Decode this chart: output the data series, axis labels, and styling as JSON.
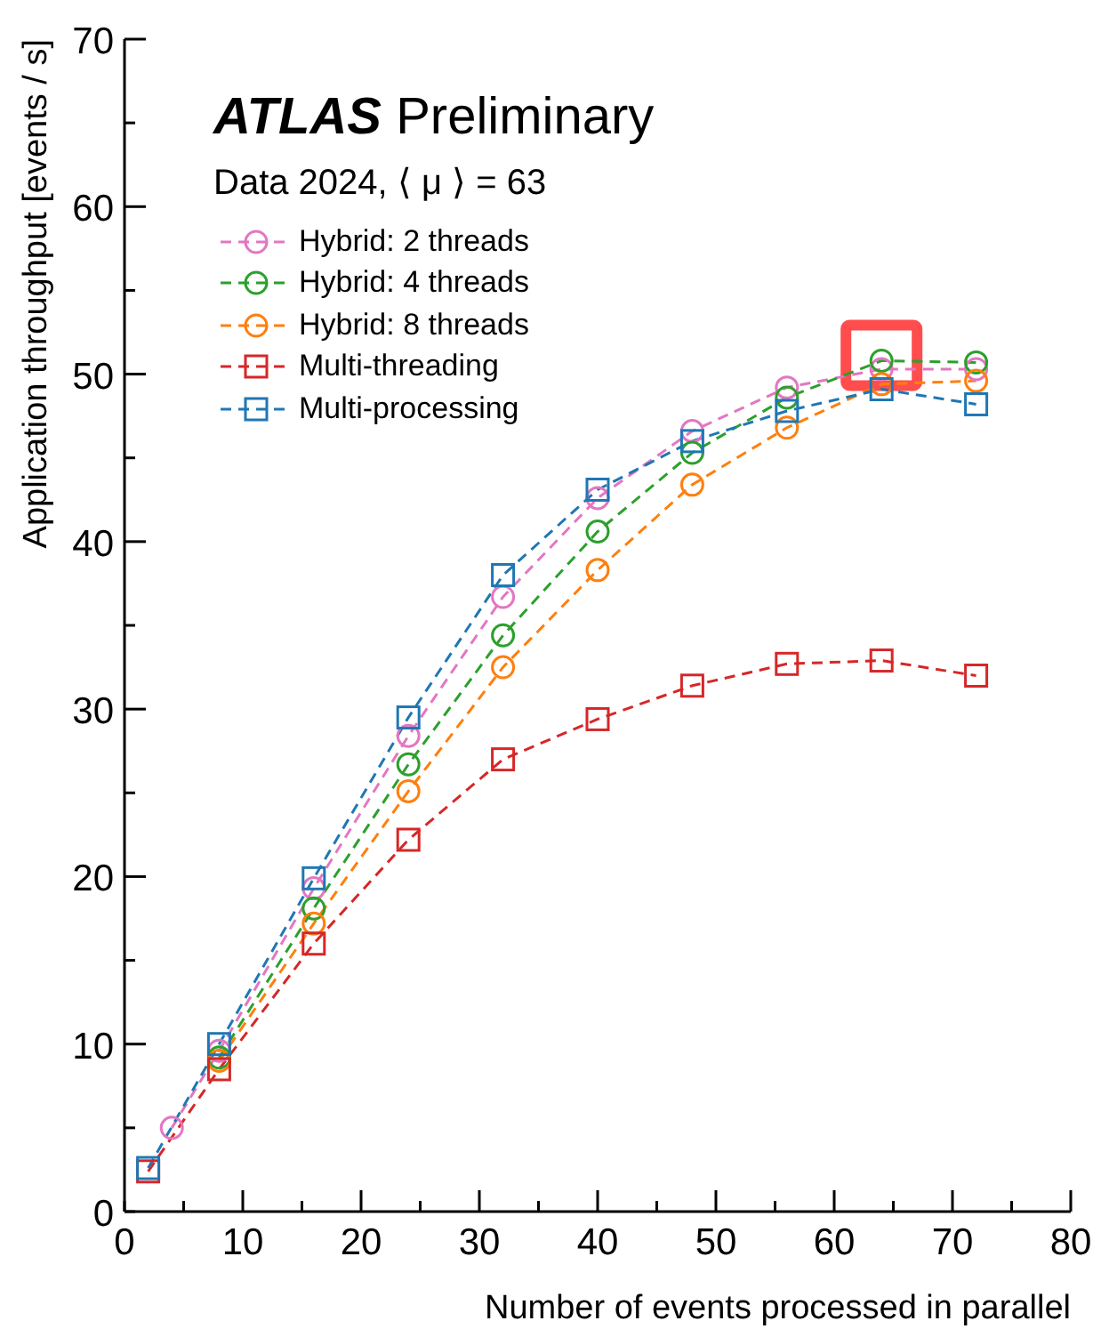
{
  "chart_data": {
    "type": "line",
    "annotations": [
      "ATLAS",
      "Preliminary",
      "Data 2024, ⟨ μ ⟩ = 63"
    ],
    "xlabel": "Number of events processed in parallel",
    "ylabel": "Application throughput [events / s]",
    "xlim": [
      0,
      80
    ],
    "xticks": [
      0,
      {
        "value": 5,
        "label": null
      },
      10,
      {
        "value": 15,
        "label": null
      },
      20,
      {
        "value": 25,
        "label": null
      },
      30,
      {
        "value": 35,
        "label": null
      },
      40,
      {
        "value": 45,
        "label": null
      },
      50,
      {
        "value": 55,
        "label": null
      },
      60,
      {
        "value": 65,
        "label": null
      },
      70,
      {
        "value": 75,
        "label": null
      },
      80
    ],
    "ylim": [
      0,
      70
    ],
    "yticks": [
      0,
      {
        "value": 5,
        "label": null
      },
      10,
      {
        "value": 15,
        "label": null
      },
      20,
      {
        "value": 25,
        "label": null
      },
      30,
      {
        "value": 35,
        "label": null
      },
      40,
      {
        "value": 45,
        "label": null
      },
      50,
      {
        "value": 55,
        "label": null
      },
      60,
      {
        "value": 65,
        "label": null
      },
      70
    ],
    "grid": false,
    "legend": "top left",
    "line_style": "dashed",
    "series": [
      {
        "name": "Hybrid: 2 threads",
        "color": "#e377c2",
        "marker": "circle",
        "x": [
          4,
          8,
          16,
          24,
          32,
          40,
          48,
          56,
          64,
          72
        ],
        "values": [
          5.0,
          9.6,
          19.3,
          28.4,
          36.7,
          42.6,
          46.6,
          49.2,
          50.3,
          50.3
        ]
      },
      {
        "name": "Hybrid: 4 threads",
        "color": "#2ca02c",
        "marker": "circle",
        "x": [
          8,
          16,
          24,
          32,
          40,
          48,
          56,
          64,
          72
        ],
        "values": [
          9.2,
          18.1,
          26.7,
          34.4,
          40.6,
          45.3,
          48.6,
          50.8,
          50.7
        ]
      },
      {
        "name": "Hybrid: 8 threads",
        "color": "#ff7f0e",
        "marker": "circle",
        "x": [
          8,
          16,
          24,
          32,
          40,
          48,
          56,
          64,
          72
        ],
        "values": [
          9.0,
          17.2,
          25.1,
          32.5,
          38.3,
          43.4,
          46.8,
          49.4,
          49.6
        ]
      },
      {
        "name": "Multi-threading",
        "color": "#d62728",
        "marker": "square",
        "x": [
          2,
          8,
          16,
          24,
          32,
          40,
          48,
          56,
          64,
          72
        ],
        "values": [
          2.4,
          8.5,
          16.0,
          22.2,
          27.0,
          29.4,
          31.4,
          32.7,
          32.9,
          32.0
        ]
      },
      {
        "name": "Multi-processing",
        "color": "#1f77b4",
        "marker": "square",
        "x": [
          2,
          8,
          16,
          24,
          32,
          40,
          48,
          56,
          64,
          72
        ],
        "values": [
          2.6,
          10.0,
          19.9,
          29.5,
          38.0,
          43.1,
          46.0,
          47.8,
          49.1,
          48.2
        ]
      }
    ]
  }
}
